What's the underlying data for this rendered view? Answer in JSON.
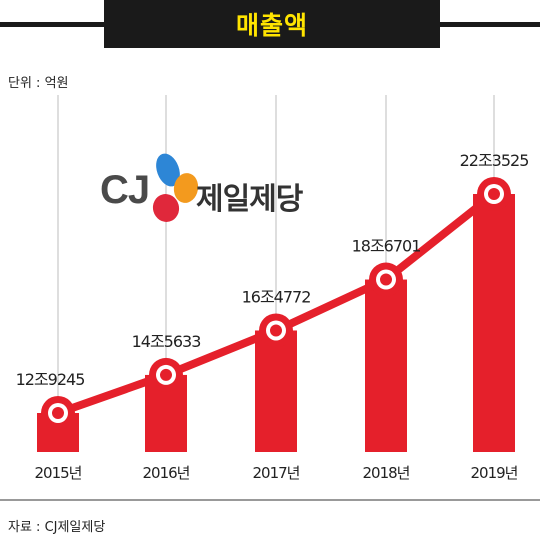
{
  "header": {
    "title": "매출액"
  },
  "unit_label": "단위 : 억원",
  "source_label": "자료 : CJ제일제당",
  "logo": {
    "mark_text": "CJ",
    "company_name": "제일제당"
  },
  "colors": {
    "bar": "#e5202b",
    "line": "#e5202b",
    "title_bg": "#1a1a1a",
    "title_text": "#ffe400"
  },
  "chart_data": {
    "type": "bar",
    "title": "매출액",
    "categories": [
      "2015년",
      "2016년",
      "2017년",
      "2018년",
      "2019년"
    ],
    "values": [
      129245,
      145633,
      164772,
      186701,
      223525
    ],
    "value_labels": [
      "12조9245",
      "14조5633",
      "16조4772",
      "18조6701",
      "22조3525"
    ],
    "ylabel": "",
    "grid": "vertical",
    "overlay_line": true
  }
}
